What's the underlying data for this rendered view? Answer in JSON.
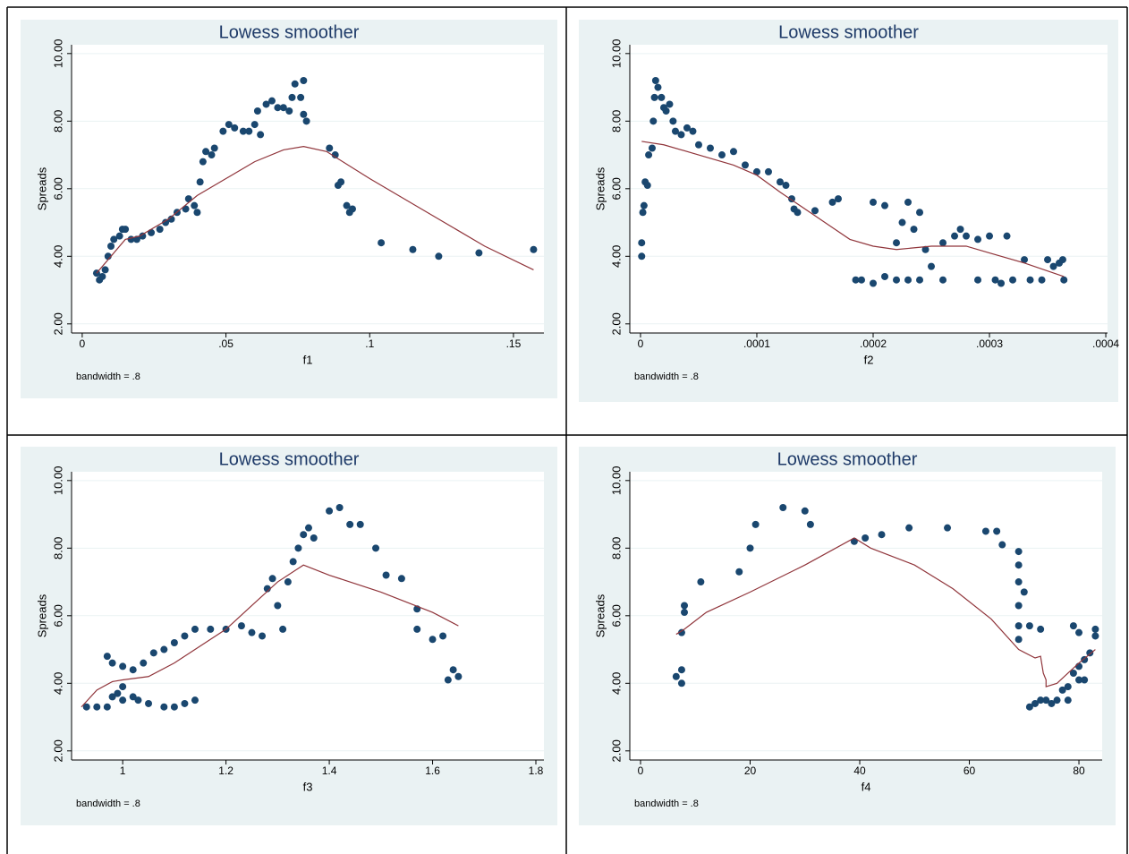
{
  "chart_data": [
    {
      "type": "scatter",
      "title": "Lowess smoother",
      "x_label": "f1",
      "y_label": "Spreads",
      "note": "bandwidth = .8",
      "xlim": [
        -0.0037,
        0.1606
      ],
      "ylim": [
        1.73,
        10.26
      ],
      "xticks": [
        0,
        {
          "value": 0.05,
          "label": ".05"
        },
        {
          "value": 0.1,
          "label": ".1"
        },
        {
          "value": 0.15,
          "label": ".15"
        }
      ],
      "yticks": [
        {
          "value": 2,
          "label": "2.00"
        },
        {
          "value": 4,
          "label": "4.00"
        },
        {
          "value": 6,
          "label": "6.00"
        },
        {
          "value": 8,
          "label": "8.00"
        },
        {
          "value": 10,
          "label": "10.00"
        }
      ],
      "grid": true,
      "series": [
        {
          "type": "scatter",
          "color": "#1a476f",
          "x": [
            0.005,
            0.006,
            0.007,
            0.008,
            0.009,
            0.01,
            0.011,
            0.013,
            0.014,
            0.015,
            0.017,
            0.019,
            0.021,
            0.024,
            0.027,
            0.029,
            0.031,
            0.033,
            0.036,
            0.037,
            0.039,
            0.04,
            0.041,
            0.042,
            0.043,
            0.045,
            0.046,
            0.049,
            0.051,
            0.053,
            0.056,
            0.058,
            0.06,
            0.062,
            0.061,
            0.064,
            0.066,
            0.068,
            0.07,
            0.072,
            0.073,
            0.074,
            0.076,
            0.077,
            0.077,
            0.078,
            0.086,
            0.088,
            0.089,
            0.09,
            0.092,
            0.093,
            0.094,
            0.104,
            0.115,
            0.124,
            0.138,
            0.157
          ],
          "values": [
            3.5,
            3.3,
            3.4,
            3.6,
            4.0,
            4.3,
            4.5,
            4.6,
            4.8,
            4.8,
            4.5,
            4.5,
            4.6,
            4.7,
            4.8,
            5.0,
            5.1,
            5.3,
            5.4,
            5.7,
            5.5,
            5.3,
            6.2,
            6.8,
            7.1,
            7.0,
            7.2,
            7.7,
            7.9,
            7.8,
            7.7,
            7.7,
            7.9,
            7.6,
            8.3,
            8.5,
            8.6,
            8.4,
            8.4,
            8.3,
            8.7,
            9.1,
            8.7,
            9.2,
            8.2,
            8.0,
            7.2,
            7.0,
            6.1,
            6.2,
            5.5,
            5.3,
            5.4,
            4.4,
            4.2,
            4.0,
            4.1,
            4.2
          ]
        },
        {
          "type": "line",
          "color": "#90353b",
          "x": [
            0.005,
            0.01,
            0.015,
            0.02,
            0.03,
            0.04,
            0.05,
            0.06,
            0.07,
            0.077,
            0.085,
            0.1,
            0.12,
            0.14,
            0.157
          ],
          "values": [
            3.5,
            4.0,
            4.5,
            4.6,
            5.1,
            5.8,
            6.3,
            6.8,
            7.15,
            7.25,
            7.1,
            6.3,
            5.3,
            4.3,
            3.6
          ]
        }
      ]
    },
    {
      "type": "scatter",
      "title": "Lowess smoother",
      "x_label": "f2",
      "y_label": "Spreads",
      "note": "bandwidth = .8",
      "xlim": [
        -9.2e-06,
        0.0004015
      ],
      "ylim": [
        1.73,
        10.26
      ],
      "xticks": [
        0,
        {
          "value": 0.0001,
          "label": ".0001"
        },
        {
          "value": 0.0002,
          "label": ".0002"
        },
        {
          "value": 0.0003,
          "label": ".0003"
        },
        {
          "value": 0.0004,
          "label": ".0004"
        }
      ],
      "yticks": [
        {
          "value": 2,
          "label": "2.00"
        },
        {
          "value": 4,
          "label": "4.00"
        },
        {
          "value": 6,
          "label": "6.00"
        },
        {
          "value": 8,
          "label": "8.00"
        },
        {
          "value": 10,
          "label": "10.00"
        }
      ],
      "grid": true,
      "series": [
        {
          "type": "scatter",
          "color": "#1a476f",
          "x": [
            1e-06,
            1e-06,
            2e-06,
            3e-06,
            4e-06,
            6e-06,
            7e-06,
            1e-05,
            1.1e-05,
            1.2e-05,
            1.3e-05,
            1.5e-05,
            1.8e-05,
            2e-05,
            2.2e-05,
            2.5e-05,
            2.8e-05,
            3e-05,
            3.5e-05,
            4e-05,
            4.5e-05,
            5e-05,
            6e-05,
            7e-05,
            8e-05,
            9e-05,
            0.0001,
            0.00011,
            0.00012,
            0.000125,
            0.00013,
            0.000132,
            0.000135,
            0.00015,
            0.000165,
            0.00017,
            0.000185,
            0.00019,
            0.0002,
            0.0002,
            0.00021,
            0.00021,
            0.00022,
            0.00022,
            0.000225,
            0.00023,
            0.00023,
            0.000235,
            0.00024,
            0.00024,
            0.000245,
            0.00025,
            0.00026,
            0.00026,
            0.00027,
            0.000275,
            0.00028,
            0.00029,
            0.00029,
            0.0003,
            0.000305,
            0.00031,
            0.000315,
            0.00032,
            0.00033,
            0.000335,
            0.000345,
            0.00035,
            0.000355,
            0.00036,
            0.000363,
            0.000364
          ],
          "values": [
            4.0,
            4.4,
            5.3,
            5.5,
            6.2,
            6.1,
            7.0,
            7.2,
            8.0,
            8.7,
            9.2,
            9.0,
            8.7,
            8.4,
            8.3,
            8.5,
            8.0,
            7.7,
            7.6,
            7.8,
            7.7,
            7.3,
            7.2,
            7.0,
            7.1,
            6.7,
            6.5,
            6.5,
            6.2,
            6.1,
            5.7,
            5.4,
            5.3,
            5.35,
            5.6,
            5.7,
            3.3,
            3.3,
            3.2,
            5.6,
            3.4,
            5.5,
            3.3,
            4.4,
            5.0,
            3.3,
            5.6,
            4.8,
            5.3,
            3.3,
            4.2,
            3.7,
            4.4,
            3.3,
            4.6,
            4.8,
            4.6,
            4.5,
            3.3,
            4.6,
            3.3,
            3.2,
            4.6,
            3.3,
            3.9,
            3.3,
            3.3,
            3.9,
            3.7,
            3.8,
            3.9,
            3.3
          ]
        },
        {
          "type": "line",
          "color": "#90353b",
          "x": [
            1e-06,
            2e-05,
            5e-05,
            8e-05,
            0.0001,
            0.00012,
            0.00015,
            0.00018,
            0.0002,
            0.00022,
            0.00025,
            0.00028,
            0.0003,
            0.00033,
            0.000364
          ],
          "values": [
            7.4,
            7.3,
            7.0,
            6.7,
            6.4,
            5.9,
            5.2,
            4.5,
            4.3,
            4.2,
            4.3,
            4.3,
            4.1,
            3.8,
            3.4
          ]
        }
      ]
    },
    {
      "type": "scatter",
      "title": "Lowess smoother",
      "x_label": "f3",
      "y_label": "Spreads",
      "note": "bandwidth = .8",
      "xlim": [
        0.901,
        1.8156
      ],
      "ylim": [
        1.73,
        10.26
      ],
      "xticks": [
        1,
        1.2,
        1.4,
        1.6,
        1.8
      ],
      "yticks": [
        {
          "value": 2,
          "label": "2.00"
        },
        {
          "value": 4,
          "label": "4.00"
        },
        {
          "value": 6,
          "label": "6.00"
        },
        {
          "value": 8,
          "label": "8.00"
        },
        {
          "value": 10,
          "label": "10.00"
        }
      ],
      "grid": true,
      "series": [
        {
          "type": "scatter",
          "color": "#1a476f",
          "x": [
            0.93,
            0.95,
            0.97,
            0.98,
            0.99,
            1.0,
            1.0,
            1.02,
            1.03,
            1.05,
            1.08,
            1.1,
            1.12,
            1.14,
            0.97,
            0.98,
            1.0,
            1.02,
            1.04,
            1.06,
            1.08,
            1.1,
            1.12,
            1.14,
            1.17,
            1.2,
            1.23,
            1.25,
            1.27,
            1.28,
            1.29,
            1.3,
            1.31,
            1.32,
            1.33,
            1.34,
            1.35,
            1.36,
            1.37,
            1.4,
            1.42,
            1.44,
            1.46,
            1.49,
            1.51,
            1.54,
            1.57,
            1.57,
            1.6,
            1.62,
            1.63,
            1.64,
            1.65
          ],
          "values": [
            3.3,
            3.3,
            3.3,
            3.6,
            3.7,
            3.5,
            3.9,
            3.6,
            3.5,
            3.4,
            3.3,
            3.3,
            3.4,
            3.5,
            4.8,
            4.6,
            4.5,
            4.4,
            4.6,
            4.9,
            5.0,
            5.2,
            5.4,
            5.6,
            5.6,
            5.6,
            5.7,
            5.5,
            5.4,
            6.8,
            7.1,
            6.3,
            5.6,
            7.0,
            7.6,
            8.0,
            8.4,
            8.6,
            8.3,
            9.1,
            9.2,
            8.7,
            8.7,
            8.0,
            7.2,
            7.1,
            6.2,
            5.6,
            5.3,
            5.4,
            4.1,
            4.4,
            4.2
          ]
        },
        {
          "type": "line",
          "color": "#90353b",
          "x": [
            0.92,
            0.95,
            0.98,
            1.0,
            1.05,
            1.1,
            1.15,
            1.2,
            1.25,
            1.3,
            1.35,
            1.4,
            1.5,
            1.6,
            1.65
          ],
          "values": [
            3.3,
            3.8,
            4.05,
            4.1,
            4.2,
            4.6,
            5.1,
            5.6,
            6.3,
            7.0,
            7.5,
            7.2,
            6.7,
            6.1,
            5.7
          ]
        }
      ]
    },
    {
      "type": "scatter",
      "title": "Lowess smoother",
      "x_label": "f4",
      "y_label": "Spreads",
      "note": "bandwidth = .8",
      "xlim": [
        -1.96,
        84.24
      ],
      "ylim": [
        1.73,
        10.26
      ],
      "xticks": [
        0,
        20,
        40,
        60,
        80
      ],
      "yticks": [
        {
          "value": 2,
          "label": "2.00"
        },
        {
          "value": 4,
          "label": "4.00"
        },
        {
          "value": 6,
          "label": "6.00"
        },
        {
          "value": 8,
          "label": "8.00"
        },
        {
          "value": 10,
          "label": "10.00"
        }
      ],
      "grid": true,
      "series": [
        {
          "type": "scatter",
          "color": "#1a476f",
          "x": [
            6.5,
            7.5,
            7.5,
            7.5,
            8,
            8,
            11,
            18,
            20,
            21,
            26,
            30,
            31,
            39,
            41,
            44,
            49,
            56,
            63,
            65,
            66,
            69,
            69,
            69,
            69,
            69,
            69,
            70,
            71,
            73,
            71,
            72,
            73,
            74,
            75,
            76,
            77,
            78,
            79,
            79,
            80,
            80,
            81,
            82,
            83,
            83,
            78,
            80,
            81
          ],
          "values": [
            4.2,
            4.0,
            4.4,
            5.5,
            6.1,
            6.3,
            7.0,
            7.3,
            8.0,
            8.7,
            9.2,
            9.1,
            8.7,
            8.2,
            8.3,
            8.4,
            8.6,
            8.6,
            8.5,
            8.5,
            8.1,
            7.9,
            7.5,
            7.0,
            6.3,
            5.7,
            5.3,
            6.7,
            5.7,
            5.6,
            3.3,
            3.4,
            3.5,
            3.5,
            3.4,
            3.5,
            3.8,
            3.9,
            4.3,
            5.7,
            4.5,
            5.5,
            4.7,
            4.9,
            5.4,
            5.6,
            3.5,
            4.1,
            4.1
          ]
        },
        {
          "type": "line",
          "color": "#90353b",
          "x": [
            6.5,
            8,
            12,
            20,
            30,
            39,
            42,
            50,
            57,
            64,
            69,
            72,
            73,
            73.5,
            74,
            74,
            76,
            78,
            80,
            83
          ],
          "values": [
            5.45,
            5.6,
            6.1,
            6.7,
            7.5,
            8.3,
            8.0,
            7.5,
            6.8,
            5.9,
            5.0,
            4.75,
            4.8,
            4.3,
            4.1,
            3.9,
            4.0,
            4.3,
            4.6,
            5.0
          ]
        }
      ]
    }
  ]
}
